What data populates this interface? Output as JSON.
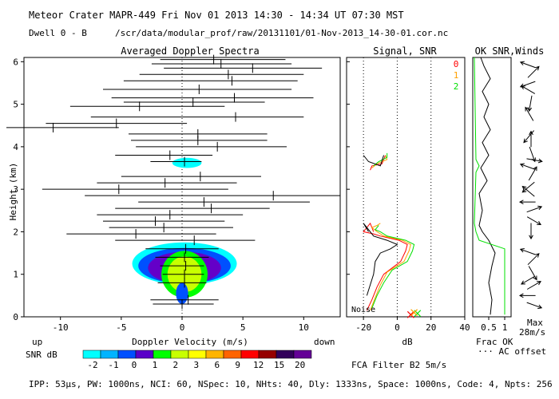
{
  "header": {
    "line1": "Meteor Crater  MAPR-449  Fri Nov 01 2013 14:30 - 14:34 UT 07:30 MST",
    "dwell_label": "Dwell  0 -  B",
    "path": "/scr/data/modular_prof/raw/20131101/01-Nov-2013_14-30-01.cor.nc"
  },
  "footer": {
    "params": "IPP: 53µs,  PW: 1000ns,  NCI: 60,  NSpec: 10,  NHts: 40,  Dly: 1333ns,  Space: 1000ns,  Code: 4,  Npts: 256",
    "fca": "FCA Filter B2  5m/s"
  },
  "colors": {
    "snr_scale": [
      "#00ffff",
      "#00b4ff",
      "#0050ff",
      "#6400c8",
      "#00ff00",
      "#c8ff00",
      "#ffff00",
      "#ffb400",
      "#ff6400",
      "#ff0000",
      "#960000",
      "#32005a",
      "#640096"
    ]
  },
  "chart_data": [
    {
      "type": "scatter",
      "title": "Averaged Doppler Spectra",
      "xlabel": "Doppler Velocity (m/s)",
      "ylabel": "Height (km)",
      "xlim": [
        -13,
        13
      ],
      "ylim": [
        0,
        6.1
      ],
      "x_ticks": [
        -10,
        -5,
        0,
        5,
        10
      ],
      "y_ticks": [
        0,
        1,
        2,
        3,
        4,
        5,
        6
      ],
      "x_end_labels": {
        "left": "up",
        "right": "down"
      },
      "colorbar": {
        "label": "SNR dB",
        "ticks": [
          -2,
          -1,
          0,
          1,
          2,
          3,
          6,
          9,
          12,
          15,
          20
        ]
      },
      "segments": [
        {
          "h": 0.3,
          "lo": -2.4,
          "hi": 2.6,
          "c": 0
        },
        {
          "h": 0.4,
          "lo": -2.6,
          "hi": 3.0,
          "c": 0.5
        },
        {
          "h": 0.8,
          "lo": -2.0,
          "hi": 2.0,
          "c": 0.2
        },
        {
          "h": 1.0,
          "lo": -1.6,
          "hi": 1.8,
          "c": 0.2
        },
        {
          "h": 1.2,
          "lo": -1.8,
          "hi": 1.8,
          "c": 0.3
        },
        {
          "h": 1.4,
          "lo": -2.2,
          "hi": 2.2,
          "c": 0.2
        },
        {
          "h": 1.6,
          "lo": -3.0,
          "hi": 3.0,
          "c": 0.3
        },
        {
          "h": 1.8,
          "lo": -5.5,
          "hi": 6.0,
          "c": 1.0
        },
        {
          "h": 1.95,
          "lo": -9.5,
          "hi": 2.8,
          "c": -3.8
        },
        {
          "h": 2.1,
          "lo": -6.0,
          "hi": 4.2,
          "c": -1.5
        },
        {
          "h": 2.25,
          "lo": -6.5,
          "hi": 3.5,
          "c": -2.2
        },
        {
          "h": 2.4,
          "lo": -7.0,
          "hi": 5.0,
          "c": -1.0
        },
        {
          "h": 2.55,
          "lo": -5.5,
          "hi": 7.2,
          "c": 2.4
        },
        {
          "h": 2.7,
          "lo": -3.6,
          "hi": 10.5,
          "c": 1.8
        },
        {
          "h": 2.85,
          "lo": -8.0,
          "hi": 13.0,
          "c": 7.5
        },
        {
          "h": 3.0,
          "lo": -11.5,
          "hi": 3.8,
          "c": -5.2
        },
        {
          "h": 3.15,
          "lo": -7.0,
          "hi": 4.5,
          "c": -1.4
        },
        {
          "h": 3.3,
          "lo": -5.0,
          "hi": 6.5,
          "c": 1.5
        },
        {
          "h": 3.65,
          "lo": -2.6,
          "hi": 1.6,
          "c": 0.2
        },
        {
          "h": 3.8,
          "lo": -5.5,
          "hi": 2.5,
          "c": -1.0
        },
        {
          "h": 4.0,
          "lo": -3.8,
          "hi": 8.6,
          "c": 2.9
        },
        {
          "h": 4.15,
          "lo": -4.2,
          "hi": 7.0,
          "c": 1.3
        },
        {
          "h": 4.3,
          "lo": -4.4,
          "hi": 7.0,
          "c": 1.3
        },
        {
          "h": 4.45,
          "lo": -16.0,
          "hi": -5.2,
          "c": -10.6
        },
        {
          "h": 4.55,
          "lo": -11.2,
          "hi": 0.4,
          "c": -5.4
        },
        {
          "h": 4.7,
          "lo": -7.5,
          "hi": 10.0,
          "c": 4.4
        },
        {
          "h": 4.95,
          "lo": -9.2,
          "hi": 3.5,
          "c": -3.5
        },
        {
          "h": 5.05,
          "lo": -4.8,
          "hi": 6.8,
          "c": 0.9
        },
        {
          "h": 5.15,
          "lo": -5.8,
          "hi": 10.8,
          "c": 4.3
        },
        {
          "h": 5.35,
          "lo": -6.5,
          "hi": 9.0,
          "c": 1.4
        },
        {
          "h": 5.55,
          "lo": -4.8,
          "hi": 9.5,
          "c": 4.1
        },
        {
          "h": 5.7,
          "lo": -3.5,
          "hi": 10.0,
          "c": 3.8
        },
        {
          "h": 5.85,
          "lo": -1.5,
          "hi": 11.5,
          "c": 5.8
        },
        {
          "h": 5.95,
          "lo": -2.5,
          "hi": 9.0,
          "c": 3.2
        },
        {
          "h": 6.05,
          "lo": -1.8,
          "hi": 8.5,
          "c": 2.6
        }
      ]
    },
    {
      "type": "line",
      "title": "Signal, SNR",
      "xlabel": "dB",
      "xlim": [
        -30,
        40
      ],
      "ylim": [
        0,
        6.1
      ],
      "x_ticks": [
        -20,
        0,
        20,
        40
      ],
      "dotted_lines": [
        -20,
        0,
        20
      ],
      "noise_label": "Noise",
      "legend": [
        "0",
        "1",
        "2"
      ],
      "series": [
        {
          "name": "0",
          "color": "#ff0000",
          "points": [
            [
              -18,
              0.15
            ],
            [
              -15,
              0.4
            ],
            [
              -12,
              0.7
            ],
            [
              -8,
              1.0
            ],
            [
              2,
              1.3
            ],
            [
              5,
              1.55
            ],
            [
              6,
              1.7
            ],
            [
              1,
              1.8
            ],
            [
              -10,
              1.9
            ],
            [
              -14,
              1.95
            ],
            [
              -20,
              2.0
            ],
            [
              -16,
              2.2
            ],
            [
              -14,
              2.0
            ]
          ]
        },
        {
          "name": "1",
          "color": "#ffa000",
          "points": [
            [
              -16,
              0.15
            ],
            [
              -13,
              0.45
            ],
            [
              -10,
              0.75
            ],
            [
              -6,
              1.05
            ],
            [
              4,
              1.3
            ],
            [
              7,
              1.55
            ],
            [
              8,
              1.7
            ],
            [
              3,
              1.8
            ],
            [
              -8,
              1.9
            ],
            [
              -12,
              2.0
            ],
            [
              -15,
              2.1
            ],
            [
              -12,
              2.15
            ],
            [
              -10,
              2.2
            ]
          ]
        },
        {
          "name": "2",
          "color": "#00e000",
          "points": [
            [
              -15,
              0.2
            ],
            [
              -12,
              0.5
            ],
            [
              -8,
              0.8
            ],
            [
              -3,
              1.1
            ],
            [
              6,
              1.3
            ],
            [
              9,
              1.55
            ],
            [
              10,
              1.7
            ],
            [
              5,
              1.8
            ],
            [
              -6,
              1.9
            ],
            [
              -10,
              2.0
            ],
            [
              -13,
              2.05
            ],
            [
              -11,
              2.15
            ]
          ]
        },
        {
          "name": "0b",
          "color": "#ff0000",
          "points": [
            [
              -16,
              3.45
            ],
            [
              -15,
              3.55
            ],
            [
              -9,
              3.6
            ],
            [
              -7,
              3.8
            ]
          ]
        },
        {
          "name": "1b",
          "color": "#ffa000",
          "points": [
            [
              -15,
              3.5
            ],
            [
              -12,
              3.6
            ],
            [
              -6,
              3.7
            ],
            [
              -7,
              3.8
            ]
          ]
        },
        {
          "name": "2b",
          "color": "#00e000",
          "points": [
            [
              -14,
              3.55
            ],
            [
              -11,
              3.65
            ],
            [
              -6,
              3.75
            ],
            [
              -6,
              3.85
            ]
          ]
        },
        {
          "name": "noise",
          "color": "#000000",
          "points": [
            [
              -18,
              0.5
            ],
            [
              -16,
              0.75
            ],
            [
              -14,
              1.0
            ],
            [
              -13,
              1.3
            ],
            [
              -10,
              1.5
            ],
            [
              -4,
              1.6
            ],
            [
              0,
              1.7
            ],
            [
              -6,
              1.8
            ],
            [
              -14,
              1.9
            ],
            [
              -18,
              2.1
            ],
            [
              -20,
              2.2
            ],
            [
              -17,
              2.0
            ]
          ]
        },
        {
          "name": "noise_b",
          "color": "#000000",
          "points": [
            [
              -20,
              3.8
            ],
            [
              -17,
              3.65
            ],
            [
              -10,
              3.55
            ],
            [
              -8,
              3.8
            ]
          ]
        }
      ],
      "x_markers": [
        {
          "x": 8,
          "h": 0.05,
          "color": "#ff0000"
        },
        {
          "x": 12,
          "h": 0.08,
          "color": "#00e000"
        },
        {
          "x": 10,
          "h": 0.1,
          "color": "#ffa000"
        }
      ]
    },
    {
      "type": "line",
      "title": "OK SNR,Winds",
      "xlabel": "Frac OK",
      "xlim": [
        0,
        1.2
      ],
      "ylim": [
        0,
        6.1
      ],
      "x_ticks": [
        0.5,
        1
      ],
      "x_tick_labels": [
        "0.5",
        "1"
      ],
      "legend_note": "··· AC offset",
      "max_label": "Max",
      "max_value": "28m/s",
      "series": [
        {
          "name": "frac_ok",
          "color": "#000000",
          "points": [
            [
              0.55,
              0.05
            ],
            [
              0.6,
              0.4
            ],
            [
              0.5,
              0.8
            ],
            [
              0.6,
              1.2
            ],
            [
              0.7,
              1.5
            ],
            [
              0.5,
              1.8
            ],
            [
              0.3,
              2.0
            ],
            [
              0.2,
              2.15
            ],
            [
              0.3,
              2.5
            ],
            [
              0.2,
              2.9
            ],
            [
              0.45,
              3.2
            ],
            [
              0.25,
              3.5
            ],
            [
              0.5,
              3.8
            ],
            [
              0.3,
              4.1
            ],
            [
              0.55,
              4.4
            ],
            [
              0.35,
              4.7
            ],
            [
              0.5,
              5.0
            ],
            [
              0.3,
              5.3
            ],
            [
              0.55,
              5.6
            ],
            [
              0.35,
              5.9
            ],
            [
              0.25,
              6.1
            ]
          ]
        },
        {
          "name": "snr_ok",
          "color": "#00e000",
          "points": [
            [
              1.0,
              0.05
            ],
            [
              1.0,
              1.6
            ],
            [
              0.2,
              1.8
            ],
            [
              0.1,
              2.0
            ],
            [
              0.05,
              2.2
            ],
            [
              0.1,
              3.4
            ],
            [
              0.2,
              3.55
            ],
            [
              0.1,
              3.7
            ],
            [
              0.05,
              6.1
            ]
          ]
        }
      ],
      "wind_arrows": [
        {
          "h": 0.3,
          "dir": 20
        },
        {
          "h": 0.5,
          "dir": 180
        },
        {
          "h": 0.7,
          "dir": -30
        },
        {
          "h": 0.9,
          "dir": 150
        },
        {
          "h": 1.1,
          "dir": 60
        },
        {
          "h": 1.3,
          "dir": -45
        },
        {
          "h": 1.5,
          "dir": 200
        },
        {
          "h": 2.1,
          "dir": 90
        },
        {
          "h": 2.3,
          "dir": 30
        },
        {
          "h": 2.5,
          "dir": -20
        },
        {
          "h": 2.7,
          "dir": 180
        },
        {
          "h": 2.9,
          "dir": 220
        },
        {
          "h": 3.1,
          "dir": 140
        },
        {
          "h": 3.3,
          "dir": -60
        },
        {
          "h": 3.5,
          "dir": 200
        },
        {
          "h": 3.7,
          "dir": 10
        },
        {
          "h": 3.9,
          "dir": 70
        },
        {
          "h": 4.1,
          "dir": -90
        },
        {
          "h": 4.3,
          "dir": 130
        },
        {
          "h": 4.7,
          "dir": -120
        },
        {
          "h": 5.1,
          "dir": 100
        },
        {
          "h": 5.3,
          "dir": -150
        },
        {
          "h": 5.5,
          "dir": 160
        },
        {
          "h": 5.7,
          "dir": -45
        },
        {
          "h": 5.9,
          "dir": 200
        }
      ]
    }
  ]
}
